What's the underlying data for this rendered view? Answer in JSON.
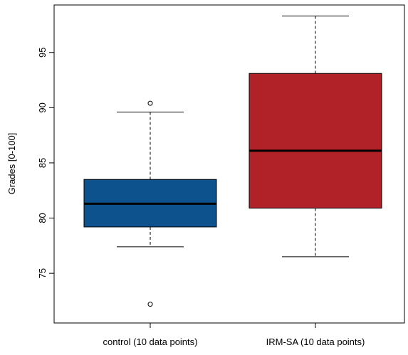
{
  "chart_data": {
    "type": "boxplot",
    "title": "",
    "xlabel": "",
    "ylabel": "Grades [0-100]",
    "ylim": [
      70.5,
      99.3
    ],
    "yticks": [
      75,
      80,
      85,
      90,
      95
    ],
    "grid": false,
    "legend": "none",
    "categories": [
      "control (10 data points)",
      "IRM-SA (10 data points)"
    ],
    "boxes": [
      {
        "label": "control (10 data points)",
        "whisker_low": 77.4,
        "q1": 79.2,
        "median": 81.3,
        "q3": 83.5,
        "whisker_high": 89.6,
        "outliers": [
          90.4,
          72.2
        ],
        "color": "#0d528c"
      },
      {
        "label": "IRM-SA (10 data points)",
        "whisker_low": 76.5,
        "q1": 80.9,
        "median": 86.1,
        "q3": 93.1,
        "whisker_high": 98.3,
        "outliers": [],
        "color": "#b02227"
      }
    ]
  }
}
